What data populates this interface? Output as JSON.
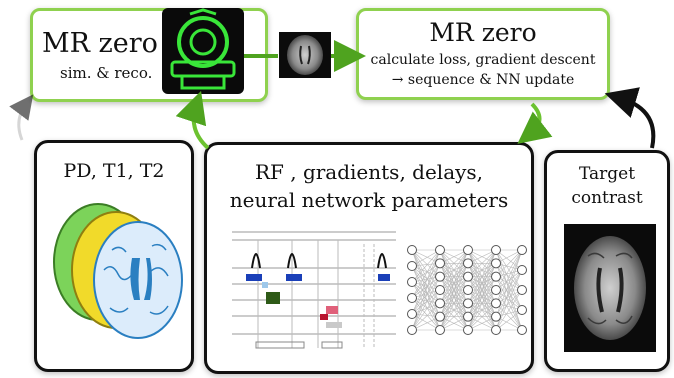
{
  "sim_box": {
    "title": "MR zero",
    "subtitle": "sim. & reco."
  },
  "update_box": {
    "title": "MR zero",
    "line1": "calculate loss, gradient descent",
    "line2": "→ sequence & NN update"
  },
  "tissue_box": {
    "title": "PD, T1, T2"
  },
  "params_box": {
    "line1": "RF , gradients, delays,",
    "line2": "neural network parameters"
  },
  "target_box": {
    "line1": "Target",
    "line2": "contrast"
  },
  "colors": {
    "green": "#8fd14f",
    "black": "#111111",
    "scanner_green": "#39e639",
    "brain_blue": "#2a7fc1"
  }
}
